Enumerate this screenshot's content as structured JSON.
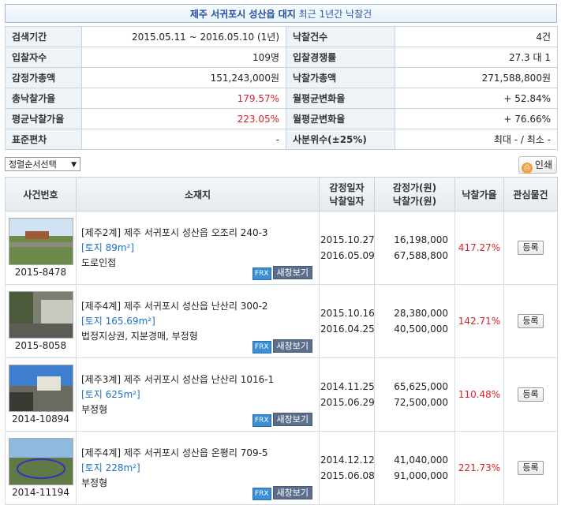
{
  "title": {
    "highlight": "제주 서귀포시 성산읍 대지",
    "rest": " 최근 1년간 낙찰건"
  },
  "summary": [
    {
      "l1": "검색기간",
      "v1": "2015.05.11 ~ 2016.05.10 (1년)",
      "l2": "낙찰건수",
      "v2": "4건"
    },
    {
      "l1": "입찰자수",
      "v1": "109명",
      "l2": "입찰경쟁률",
      "v2": "27.3 대 1"
    },
    {
      "l1": "감정가총액",
      "v1": "151,243,000원",
      "l2": "낙찰가총액",
      "v2": "271,588,800원"
    },
    {
      "l1": "총낙찰가율",
      "v1": "179.57%",
      "l2": "월평균변화율",
      "v2": "+ 52.84%"
    },
    {
      "l1": "평균낙찰가율",
      "v1": "223.05%",
      "l2": "월평균변화율",
      "v2": "+ 76.66%"
    },
    {
      "l1": "표준편차",
      "v1": "-",
      "l2": "사분위수(±25%)",
      "v2": "최대 - / 최소 -"
    }
  ],
  "sort_select": {
    "label": "정렬순서선택"
  },
  "print_button": {
    "label": "인쇄"
  },
  "columns": {
    "case": "사건번호",
    "address": "소재지",
    "dates": [
      "감정일자",
      "낙찰일자"
    ],
    "prices": [
      "감정가(원)",
      "낙찰가(원)"
    ],
    "rate": "낙찰가율",
    "interest": "관심물건"
  },
  "rows": [
    {
      "case": "2015-8478",
      "court": "[제주2계]",
      "addr": "제주 서귀포시 성산읍 오조리 240-3",
      "area": "[토지 89m²]",
      "note": "도로인접",
      "appraisal_date": "2015.10.27",
      "sale_date": "2016.05.09",
      "appraisal": "16,198,000",
      "sale": "67,588,800",
      "rate": "417.27%",
      "frx": "FRX",
      "new_window": "새창보기",
      "register": "등록"
    },
    {
      "case": "2015-8058",
      "court": "[제주4계]",
      "addr": "제주 서귀포시 성산읍 난산리 300-2",
      "area": "[토지 165.69m²]",
      "note": "법정지상권, 지분경매, 부정형",
      "appraisal_date": "2015.10.16",
      "sale_date": "2016.04.25",
      "appraisal": "28,380,000",
      "sale": "40,500,000",
      "rate": "142.71%",
      "frx": "FRX",
      "new_window": "새창보기",
      "register": "등록"
    },
    {
      "case": "2014-10894",
      "court": "[제주3계]",
      "addr": "제주 서귀포시 성산읍 난산리 1016-1",
      "area": "[토지 625m²]",
      "note": "부정형",
      "appraisal_date": "2014.11.25",
      "sale_date": "2015.06.29",
      "appraisal": "65,625,000",
      "sale": "72,500,000",
      "rate": "110.48%",
      "frx": "FRX",
      "new_window": "새창보기",
      "register": "등록"
    },
    {
      "case": "2014-11194",
      "court": "[제주4계]",
      "addr": "제주 서귀포시 성산읍 온평리 709-5",
      "area": "[토지 228m²]",
      "note": "부정형",
      "appraisal_date": "2014.12.12",
      "sale_date": "2015.06.08",
      "appraisal": "41,040,000",
      "sale": "91,000,000",
      "rate": "221.73%",
      "frx": "FRX",
      "new_window": "새창보기",
      "register": "등록"
    }
  ]
}
